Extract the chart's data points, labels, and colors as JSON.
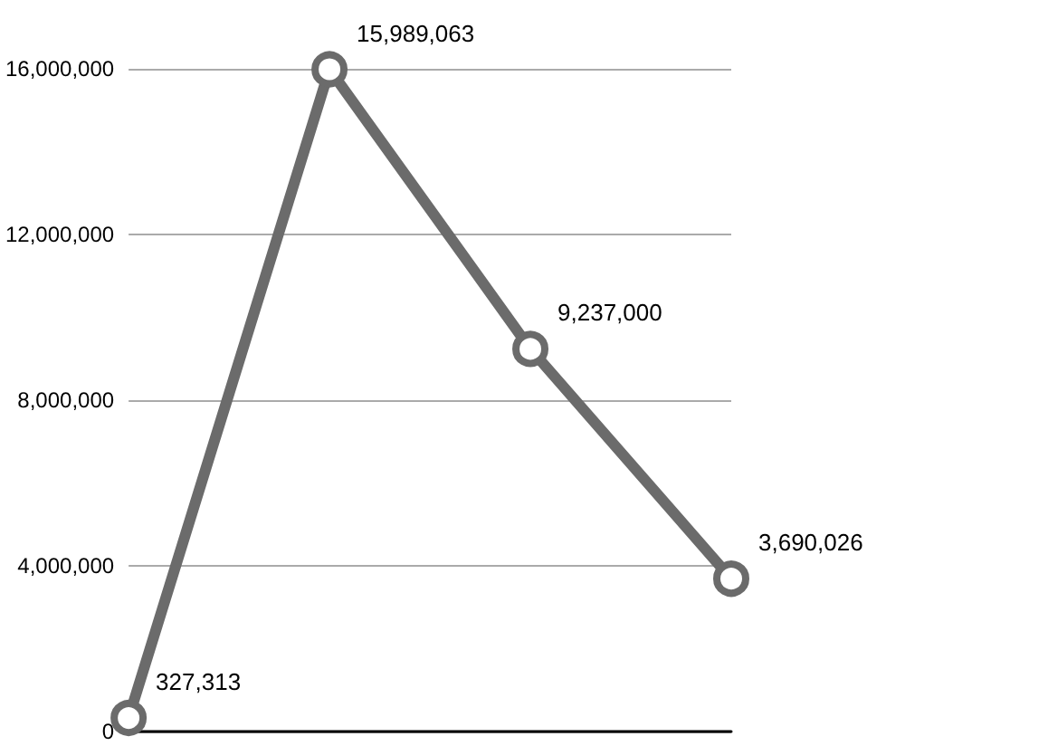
{
  "chart_data": {
    "type": "line",
    "categories": [
      null,
      null,
      null,
      null
    ],
    "series": [
      {
        "color": "#6b6b6b",
        "values": [
          327313,
          15989063,
          9237000,
          3690026
        ],
        "value_labels": [
          "327,313",
          "15,989,063",
          "9,237,000",
          "3,690,026"
        ]
      }
    ],
    "ylim": [
      0,
      16000000
    ],
    "yticks": [
      {
        "value": 0,
        "label": "0"
      },
      {
        "value": 4000000,
        "label": "4,000,000"
      },
      {
        "value": 8000000,
        "label": "8,000,000"
      },
      {
        "value": 12000000,
        "label": "12,000,000"
      },
      {
        "value": 16000000,
        "label": "16,000,000"
      }
    ],
    "grid": "y",
    "marker": "circle",
    "line_style": "solid"
  }
}
